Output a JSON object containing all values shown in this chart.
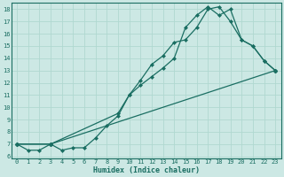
{
  "xlabel": "Humidex (Indice chaleur)",
  "ylabel": "",
  "xlim": [
    -0.5,
    23.5
  ],
  "ylim": [
    5.8,
    18.5
  ],
  "bg_color": "#cce8e4",
  "grid_color": "#b0d8d0",
  "line_color": "#1a6e62",
  "line1_x": [
    0,
    1,
    2,
    3,
    4,
    5,
    6,
    7,
    8,
    9,
    10,
    11,
    12,
    13,
    14,
    15,
    16,
    17,
    18,
    19,
    20,
    21,
    22,
    23
  ],
  "line1_y": [
    7.0,
    6.5,
    6.5,
    7.0,
    6.5,
    6.7,
    6.7,
    7.5,
    8.5,
    9.3,
    11.0,
    12.2,
    13.5,
    14.2,
    15.3,
    15.5,
    16.5,
    18.0,
    18.2,
    17.0,
    15.5,
    15.0,
    13.8,
    13.0
  ],
  "line2_x": [
    0,
    3,
    9,
    10,
    11,
    12,
    13,
    14,
    15,
    16,
    17,
    18,
    19,
    20,
    21,
    22,
    23
  ],
  "line2_y": [
    7.0,
    7.0,
    9.5,
    11.0,
    11.8,
    12.5,
    13.2,
    14.0,
    16.5,
    17.5,
    18.2,
    17.5,
    18.0,
    15.5,
    15.0,
    13.8,
    13.0
  ],
  "line3_x": [
    0,
    3,
    23
  ],
  "line3_y": [
    7.0,
    7.0,
    13.0
  ],
  "yticks": [
    6,
    7,
    8,
    9,
    10,
    11,
    12,
    13,
    14,
    15,
    16,
    17,
    18
  ],
  "xticks": [
    0,
    1,
    2,
    3,
    4,
    5,
    6,
    7,
    8,
    9,
    10,
    11,
    12,
    13,
    14,
    15,
    16,
    17,
    18,
    19,
    20,
    21,
    22,
    23
  ],
  "xlabel_fontsize": 6.0,
  "tick_fontsize": 5.0
}
